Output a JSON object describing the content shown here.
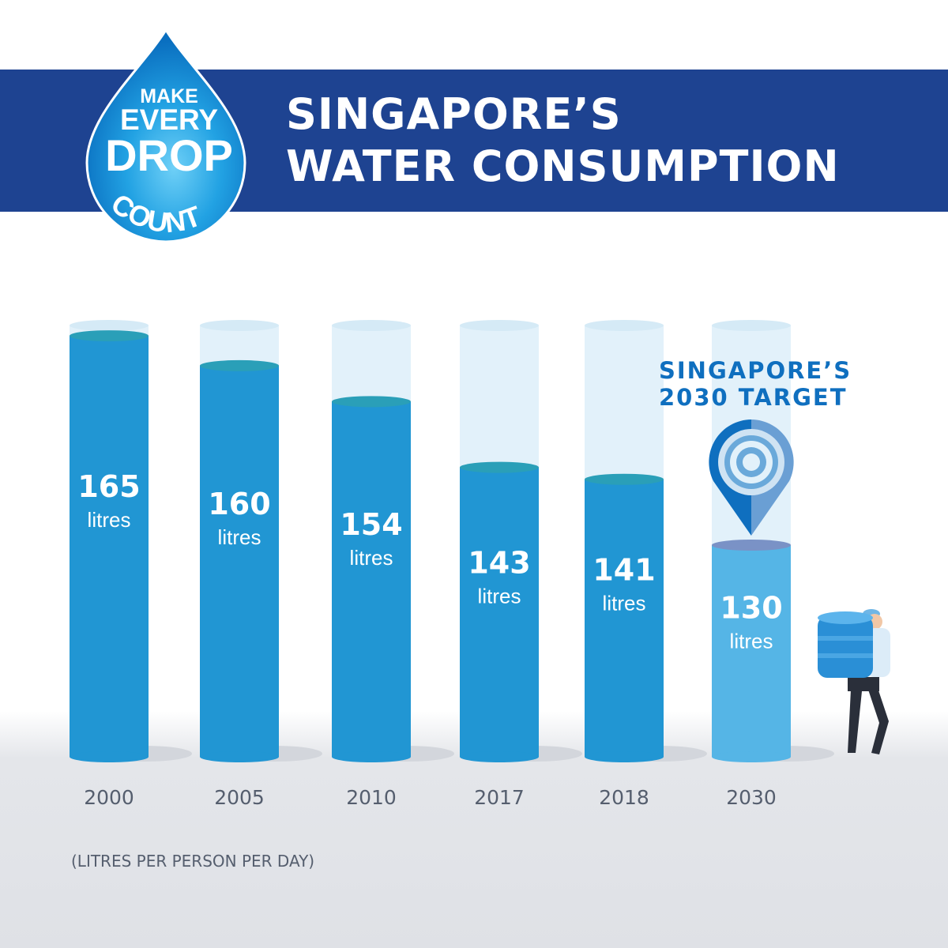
{
  "header": {
    "title_line1": "SINGAPORE’S",
    "title_line2": "WATER CONSUMPTION"
  },
  "logo": {
    "text": "MAKE EVERY DROP COUNT"
  },
  "target_label": {
    "line1": "SINGAPORE’S",
    "line2": "2030 TARGET"
  },
  "colors": {
    "banner": "#1e4391",
    "bar": "#2196d3",
    "target_bar": "#55b5e6",
    "empty": "#e2f1fa",
    "text": "#555e6e"
  },
  "chart_data": {
    "type": "bar",
    "title": "Singapore's Water Consumption",
    "categories": [
      "2000",
      "2005",
      "2010",
      "2017",
      "2018",
      "2030"
    ],
    "values": [
      165,
      160,
      154,
      143,
      141,
      130
    ],
    "unit_label": "litres",
    "ylabel": "(LITRES PER PERSON PER DAY)",
    "highlight": "2030",
    "grid": false
  }
}
